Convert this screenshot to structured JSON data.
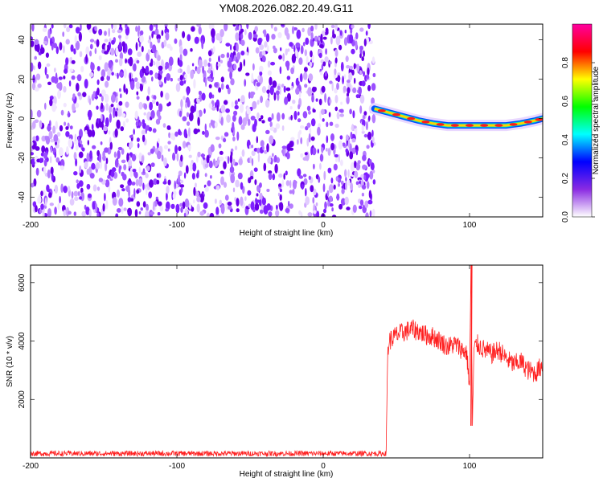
{
  "figure_title": "YM08.2026.082.20.49.G11",
  "chart_data": [
    {
      "type": "heatmap",
      "title": "",
      "xlabel": "Height of straight line (km)",
      "ylabel": "Frequency (Hz)",
      "xlim": [
        -200,
        150
      ],
      "ylim": [
        -50,
        48
      ],
      "xticks": [
        -200,
        -100,
        0,
        100
      ],
      "yticks": [
        -40,
        -20,
        0,
        20,
        40
      ],
      "noise_region_x": [
        -200,
        35
      ],
      "signal_track": {
        "x": [
          35,
          45,
          55,
          65,
          75,
          85,
          95,
          105,
          115,
          125,
          135,
          145,
          150
        ],
        "frequency": [
          5,
          3,
          1,
          -1,
          -2.5,
          -3.5,
          -3.5,
          -3.5,
          -3.5,
          -3.5,
          -2.5,
          -1,
          0
        ]
      },
      "colorbar": {
        "label": "Normalized spectral amplitude",
        "range": [
          0,
          1
        ],
        "ticks": [
          "0.0",
          "0.2",
          "0.4",
          "0.6",
          "0.8"
        ],
        "colormap": [
          "#ffffff",
          "#8a2be2",
          "#0000ff",
          "#00ffff",
          "#00ff00",
          "#ffff00",
          "#ff0000",
          "#ff00a0"
        ]
      },
      "grid": false
    },
    {
      "type": "line",
      "title": "",
      "xlabel": "Height of straight line (km)",
      "ylabel": "SNR (10 * v/v)",
      "xlim": [
        -200,
        150
      ],
      "ylim": [
        0,
        6600
      ],
      "xticks": [
        -200,
        -100,
        0,
        100
      ],
      "yticks": [
        2000,
        4000,
        6000
      ],
      "series": [
        {
          "color": "#ff2020",
          "x": [
            -200,
            -150,
            -100,
            -50,
            0,
            43,
            44,
            45,
            50,
            55,
            60,
            65,
            70,
            75,
            80,
            85,
            90,
            95,
            98,
            100,
            101,
            102,
            103,
            105,
            110,
            115,
            120,
            125,
            130,
            135,
            140,
            145,
            150
          ],
          "values": [
            150,
            150,
            150,
            150,
            150,
            150,
            3500,
            4000,
            4200,
            4300,
            4400,
            4350,
            4200,
            4150,
            4000,
            3800,
            3900,
            3700,
            3600,
            2500,
            6600,
            1100,
            3700,
            3900,
            3700,
            3550,
            3700,
            3400,
            3200,
            3300,
            3000,
            2900,
            3200
          ]
        }
      ],
      "grid": false
    }
  ]
}
